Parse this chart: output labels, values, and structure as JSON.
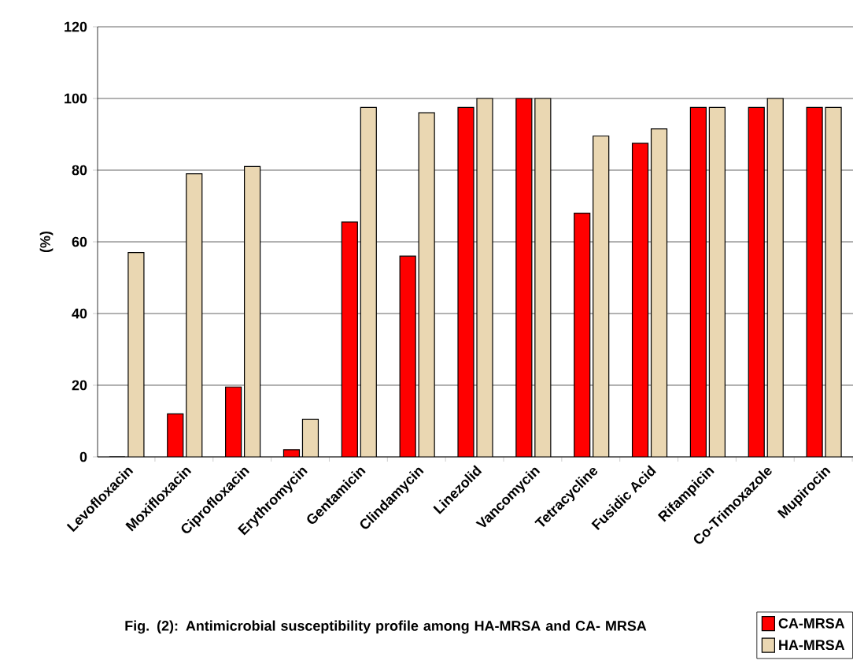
{
  "chart_data": {
    "type": "bar",
    "title": "Fig. (2): Antimicrobial susceptibility profile among HA-MRSA and CA- MRSA",
    "ylabel": "(%)",
    "categories": [
      "Levofloxacin",
      "Moxifloxacin",
      "Ciprofloxacin",
      "Erythromycin",
      "Gentamicin",
      "Clindamycin",
      "Linezolid",
      "Vancomycin",
      "Tetracycline",
      "Fusidic Acid",
      "Rifampicin",
      "Co-Trimoxazole",
      "Mupirocin"
    ],
    "series": [
      {
        "name": "CA-MRSA",
        "color": "#ff0000",
        "values": [
          0,
          12,
          19.5,
          2,
          65.5,
          56,
          97.5,
          100,
          68,
          87.5,
          97.5,
          97.5,
          97.5
        ]
      },
      {
        "name": "HA-MRSA",
        "color": "#ead7b2",
        "values": [
          57,
          79,
          81,
          10.5,
          97.5,
          96,
          100,
          100,
          89.5,
          91.5,
          97.5,
          100,
          97.5
        ]
      }
    ],
    "ylim": [
      0,
      120
    ],
    "yticks": [
      0,
      20,
      40,
      60,
      80,
      100,
      120
    ],
    "grid": "y",
    "legend": "bottom right"
  }
}
